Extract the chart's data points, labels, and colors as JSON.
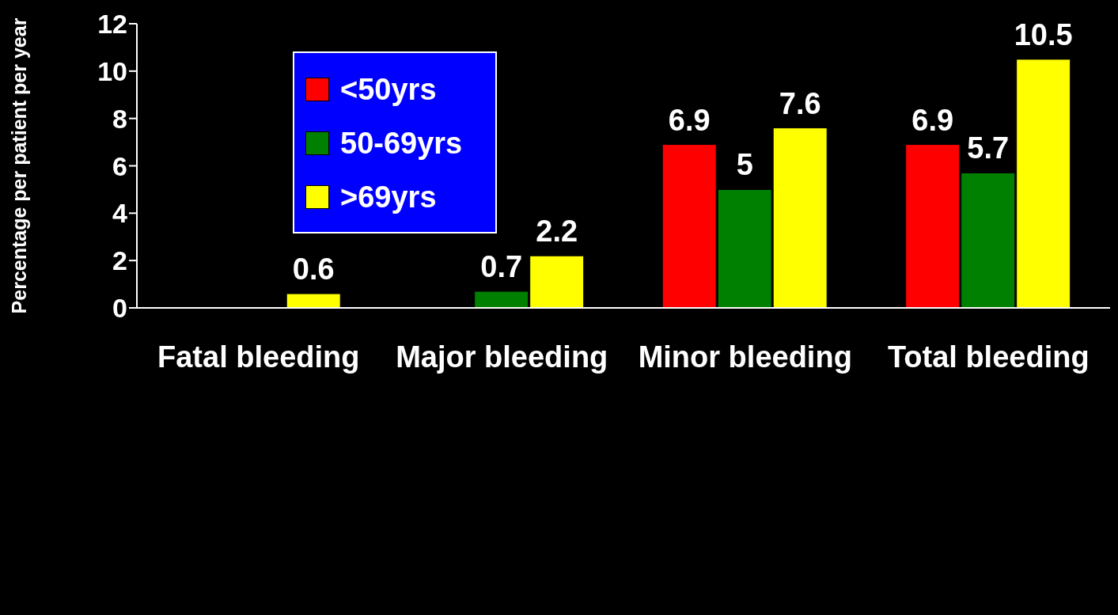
{
  "chart_data": {
    "type": "bar",
    "ylabel": "Percentage per patient per year",
    "categories": [
      "Fatal bleeding",
      "Major bleeding",
      "Minor bleeding",
      "Total bleeding"
    ],
    "series": [
      {
        "name": "<50yrs",
        "color": "#ff0000",
        "values": [
          null,
          null,
          6.9,
          6.9
        ]
      },
      {
        "name": "50-69yrs",
        "color": "#008000",
        "values": [
          null,
          0.7,
          5,
          5.7
        ]
      },
      {
        "name": ">69yrs",
        "color": "#ffff00",
        "values": [
          0.6,
          2.2,
          7.6,
          10.5
        ]
      }
    ],
    "ylim": [
      0,
      12
    ],
    "yticks": [
      0,
      2,
      4,
      6,
      8,
      10,
      12
    ],
    "data_labels": true,
    "legend": "top left",
    "grid": false
  }
}
